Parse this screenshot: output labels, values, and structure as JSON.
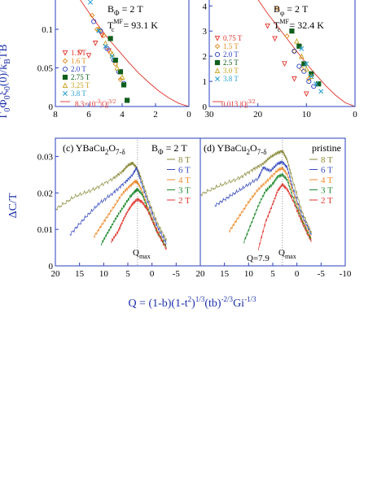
{
  "chart_data": [
    {
      "panel_id": "top-left",
      "type": "scatter",
      "ylabel": "Γ0Φ0ξ0(0)/kBTB",
      "xlim": [
        8,
        0
      ],
      "ylim": [
        0,
        0.14
      ],
      "xticks": [
        "8",
        "6",
        "4",
        "2",
        "0"
      ],
      "yticks": [
        "0",
        "0.05",
        "0.1"
      ],
      "annotations": [
        "BΦ = 2 T",
        "Tc^MF = 93.1 K"
      ],
      "fit_label": "8.3×10^-3 |Q|^3/2",
      "fit_curve": {
        "x": [
          7.2,
          6.6,
          6.0,
          5.4,
          4.8,
          4.2,
          3.6,
          3.0,
          2.4,
          1.8,
          1.2,
          0.6,
          0.0
        ],
        "y": [
          0.16,
          0.141,
          0.122,
          0.104,
          0.087,
          0.072,
          0.057,
          0.043,
          0.031,
          0.02,
          0.011,
          0.004,
          0.0
        ]
      },
      "series": [
        {
          "name": "1.1 T",
          "marker": "triangle-down",
          "color": "#e0322b",
          "x": [
            6.5,
            6.0,
            5.6,
            5.2,
            4.8
          ],
          "y": [
            0.07,
            0.066,
            0.082,
            0.092,
            0.072
          ]
        },
        {
          "name": "1.6 T",
          "marker": "diamond",
          "color": "#e08a1e",
          "x": [
            5.8,
            5.5,
            5.1,
            4.7,
            4.4,
            4.1
          ],
          "y": [
            0.118,
            0.1,
            0.092,
            0.07,
            0.055,
            0.035
          ]
        },
        {
          "name": "2.0 T",
          "marker": "circle",
          "color": "#2a3fbf",
          "x": [
            5.7,
            5.3,
            4.9,
            4.5,
            4.2,
            3.9
          ],
          "y": [
            0.11,
            0.098,
            0.075,
            0.06,
            0.045,
            0.03
          ]
        },
        {
          "name": "2.75 T",
          "marker": "square",
          "color": "#0f5e1c",
          "x": [
            4.7,
            4.4,
            4.1,
            3.9,
            3.7
          ],
          "y": [
            0.088,
            0.06,
            0.045,
            0.028,
            0.008
          ]
        },
        {
          "name": "3.25 T",
          "marker": "triangle-up",
          "color": "#c9a21a",
          "x": [
            5.4,
            5.0,
            4.6,
            4.3,
            4.0
          ],
          "y": [
            0.1,
            0.082,
            0.068,
            0.05,
            0.038
          ]
        },
        {
          "name": "3.8 T",
          "marker": "cross",
          "color": "#2aa0d0",
          "x": [
            5.9,
            5.4,
            5.0,
            4.6
          ],
          "y": [
            0.135,
            0.098,
            0.078,
            0.065
          ]
        }
      ]
    },
    {
      "panel_id": "top-right",
      "type": "scatter",
      "xlim": [
        30,
        0
      ],
      "ylim": [
        0,
        4.3
      ],
      "xticks": [
        "30",
        "20",
        "10",
        "0"
      ],
      "yticks": [
        "0",
        "1",
        "2",
        "3",
        "4"
      ],
      "annotations": [
        "Bφ = 2 T",
        "Tc^MF = 32.4 K"
      ],
      "fit_label": "0.013 |Q|^3/2",
      "fit_curve": {
        "x": [
          20.5,
          18.0,
          16.0,
          14.0,
          12.0,
          10.0,
          8.0,
          6.0,
          4.0,
          2.0,
          0.0
        ],
        "y": [
          4.4,
          3.7,
          3.2,
          2.7,
          2.2,
          1.7,
          1.25,
          0.82,
          0.45,
          0.15,
          0.0
        ]
      },
      "series": [
        {
          "name": "0.75 T",
          "marker": "triangle-down",
          "color": "#e0322b",
          "x": [
            18.0,
            16.5,
            14.5,
            12.5,
            10.0
          ],
          "y": [
            3.2,
            2.7,
            1.7,
            1.1,
            0.5
          ]
        },
        {
          "name": "1.5 T",
          "marker": "diamond",
          "color": "#e08a1e",
          "x": [
            16.0,
            14.0,
            12.5,
            11.0,
            9.5
          ],
          "y": [
            3.9,
            2.8,
            2.2,
            1.5,
            1.1
          ]
        },
        {
          "name": "2.0 T",
          "marker": "circle",
          "color": "#2a3fbf",
          "x": [
            12.5,
            11.5,
            10.5,
            9.5,
            8.5
          ],
          "y": [
            2.2,
            1.6,
            1.4,
            1.0,
            0.8
          ]
        },
        {
          "name": "2.5 T",
          "marker": "square",
          "color": "#0f5e1c",
          "x": [
            13.0,
            11.5,
            10.5,
            9.0,
            7.5
          ],
          "y": [
            3.0,
            2.4,
            1.7,
            1.3,
            0.9
          ]
        },
        {
          "name": "3.0 T",
          "marker": "triangle-up",
          "color": "#c9a21a",
          "x": [
            12.0,
            11.0,
            10.0,
            9.0
          ],
          "y": [
            2.6,
            2.0,
            1.5,
            1.2
          ]
        },
        {
          "name": "3.8 T",
          "marker": "cross",
          "color": "#2aa0d0",
          "x": [
            11.0,
            10.0,
            9.0,
            8.0,
            7.0
          ],
          "y": [
            2.3,
            1.7,
            1.2,
            0.9,
            0.6
          ]
        }
      ]
    },
    {
      "panel_id": "c",
      "type": "line",
      "title": "(c)  YBaCu2O7-δ",
      "ylabel": "ΔC/T",
      "xlim": [
        20,
        -10
      ],
      "ylim": [
        0,
        0.035
      ],
      "xticks": [
        "20",
        "15",
        "10",
        "5",
        "0",
        "-5"
      ],
      "yticks": [
        "0",
        "0.01",
        "0.02",
        "0.03"
      ],
      "annotations": [
        "BΦ = 2 T",
        "Qmax"
      ],
      "qmax_x": 3.0,
      "series": [
        {
          "name": "8 T",
          "color": "#8a8a3a",
          "x": [
            20.0,
            16.0,
            12.0,
            8.0,
            6.0,
            5.0,
            4.0,
            3.2,
            2.5,
            1.0,
            -1.0,
            -3.0
          ],
          "y": [
            0.0155,
            0.019,
            0.021,
            0.024,
            0.026,
            0.0275,
            0.0282,
            0.027,
            0.025,
            0.019,
            0.012,
            0.007
          ]
        },
        {
          "name": "6 T",
          "color": "#3a4ec0",
          "x": [
            17.0,
            14.0,
            11.0,
            8.0,
            5.5,
            4.0,
            3.2,
            2.5,
            1.0,
            -1.0,
            -3.0
          ],
          "y": [
            0.0085,
            0.013,
            0.017,
            0.02,
            0.023,
            0.025,
            0.0268,
            0.024,
            0.018,
            0.011,
            0.006
          ]
        },
        {
          "name": "4 T",
          "color": "#f08a2a",
          "x": [
            12.0,
            10.0,
            8.0,
            6.0,
            4.5,
            3.5,
            3.0,
            2.2,
            1.0,
            -1.0,
            -3.0
          ],
          "y": [
            0.008,
            0.012,
            0.016,
            0.02,
            0.022,
            0.0232,
            0.0228,
            0.021,
            0.0165,
            0.01,
            0.005
          ]
        },
        {
          "name": "3 T",
          "color": "#1e8a2e",
          "x": [
            10.5,
            9.0,
            7.5,
            6.0,
            4.5,
            3.5,
            3.0,
            2.0,
            1.0,
            -1.0,
            -3.0
          ],
          "y": [
            0.006,
            0.0095,
            0.013,
            0.016,
            0.019,
            0.0205,
            0.021,
            0.0195,
            0.016,
            0.0095,
            0.005
          ]
        },
        {
          "name": "2 T",
          "color": "#e0322b",
          "x": [
            8.5,
            7.0,
            6.0,
            5.0,
            4.0,
            3.0,
            2.0,
            1.0,
            -1.0,
            -3.0
          ],
          "y": [
            0.0065,
            0.0095,
            0.0125,
            0.015,
            0.017,
            0.0183,
            0.0175,
            0.0155,
            0.0095,
            0.0045
          ]
        }
      ]
    },
    {
      "panel_id": "d",
      "type": "line",
      "title": "(d)  YBaCu2O7-δ",
      "xlim": [
        20,
        -10
      ],
      "ylim": [
        0,
        0.035
      ],
      "xticks": [
        "20",
        "15",
        "10",
        "5",
        "0",
        "-5",
        "-10"
      ],
      "annotations": [
        "pristine",
        "Q=7.9",
        "Qmax"
      ],
      "qmax_x": 3.0,
      "series": [
        {
          "name": "8 T",
          "color": "#8a8a3a",
          "x": [
            20.0,
            16.0,
            12.0,
            9.0,
            7.0,
            5.5,
            4.0,
            3.0,
            2.0,
            1.0,
            -1.0,
            -3.0
          ],
          "y": [
            0.0195,
            0.022,
            0.024,
            0.0265,
            0.028,
            0.0298,
            0.031,
            0.0315,
            0.029,
            0.024,
            0.015,
            0.009
          ]
        },
        {
          "name": "6 T",
          "color": "#3a4ec0",
          "x": [
            17.0,
            14.0,
            11.0,
            8.0,
            7.0,
            5.5,
            4.0,
            3.0,
            2.0,
            1.0,
            -1.0,
            -3.0
          ],
          "y": [
            0.0165,
            0.019,
            0.0215,
            0.024,
            0.027,
            0.026,
            0.028,
            0.0285,
            0.027,
            0.022,
            0.014,
            0.0085
          ]
        },
        {
          "name": "4 T",
          "color": "#f08a2a",
          "x": [
            14.0,
            12.0,
            10.0,
            8.0,
            6.0,
            4.0,
            3.0,
            2.0,
            1.0,
            -1.0,
            -3.0
          ],
          "y": [
            0.0095,
            0.0135,
            0.0175,
            0.021,
            0.0235,
            0.0262,
            0.0268,
            0.025,
            0.021,
            0.013,
            0.0075
          ]
        },
        {
          "name": "3 T",
          "color": "#1e8a2e",
          "x": [
            11.0,
            9.5,
            8.0,
            6.5,
            5.0,
            4.0,
            3.0,
            2.0,
            1.0,
            -1.0,
            -3.0
          ],
          "y": [
            0.0065,
            0.0115,
            0.0165,
            0.0205,
            0.0225,
            0.0245,
            0.025,
            0.0235,
            0.0195,
            0.0125,
            0.007
          ]
        },
        {
          "name": "2 T",
          "color": "#e0322b",
          "x": [
            8.0,
            6.5,
            5.0,
            4.0,
            3.0,
            2.0,
            1.0,
            -1.0,
            -3.0
          ],
          "y": [
            0.0045,
            0.012,
            0.017,
            0.0205,
            0.0223,
            0.021,
            0.0185,
            0.012,
            0.0065
          ]
        }
      ]
    }
  ],
  "text": {
    "top_left_ylabel_main": "Γ",
    "top_left_ylabel_sub0": "0",
    "top_left_ylabel_phi": "Φ",
    "top_left_ylabel_sub1": "0",
    "top_left_ylabel_xi": "ξ",
    "top_left_ylabel_sub2": "0",
    "top_left_ylabel_rest": "(0)/k",
    "top_left_ylabel_subB": "B",
    "top_left_ylabel_tail": "TB",
    "top_left_bphi": "B",
    "top_left_bphi_sub": "Φ",
    "top_left_bphi_val": " = 2 T",
    "top_left_tc": "T",
    "top_left_tc_sup": "MF",
    "top_left_tc_sub": "c",
    "top_left_tc_val": " = 93.1 K",
    "top_right_bphi": "B",
    "top_right_bphi_sub": "φ",
    "top_right_bphi_val": " = 2 T",
    "top_right_tc": "T",
    "top_right_tc_sup": "MF",
    "top_right_tc_sub": "c",
    "top_right_tc_val": " = 32.4 K",
    "fit_left_pre": "8.3×10",
    "fit_left_exp": "-3",
    "fit_left_mid": "|Q|",
    "fit_left_pow": "3/2",
    "fit_right_pre": "0.013 |Q|",
    "fit_right_pow": "3/2",
    "c_title_pre": "(c)  YBaCu",
    "c_title_sub1": "2",
    "c_title_mid": "O",
    "c_title_sub2": "7-δ",
    "c_bphi": "B",
    "c_bphi_sub": "Φ",
    "c_bphi_val": " = 2 T",
    "d_title_pre": "(d)  YBaCu",
    "d_title_sub1": "2",
    "d_title_mid": "O",
    "d_title_sub2": "7-δ",
    "d_pristine": "pristine",
    "d_q79": "Q=7.9",
    "qmax": "Q",
    "qmax_sub": "max",
    "bottom_ylabel": "ΔC/T",
    "xlabel_a": "Q = (1-b)(1-t",
    "xlabel_sup1": "2",
    "xlabel_b": ")",
    "xlabel_sup2": "1/3",
    "xlabel_c": "(tb)",
    "xlabel_sup3": "-2/3",
    "xlabel_d": "Gi",
    "xlabel_sup4": "-1/3"
  }
}
